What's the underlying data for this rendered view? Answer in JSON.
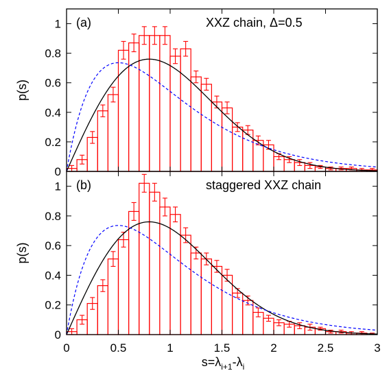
{
  "chart_data": [
    {
      "type": "bar",
      "panel_label": "(a)",
      "title": "XXZ chain, Δ=0.5",
      "ylabel": "p(s)",
      "xlabel": "",
      "xlim": [
        0,
        3
      ],
      "ylim": [
        0,
        1.1
      ],
      "yticks": [
        "0",
        "0.2",
        "0.4",
        "0.6",
        "0.8",
        "1"
      ],
      "xticks": [],
      "bin_width": 0.1,
      "x": [
        0.0,
        0.1,
        0.2,
        0.3,
        0.4,
        0.5,
        0.6,
        0.7,
        0.8,
        0.9,
        1.0,
        1.1,
        1.2,
        1.3,
        1.4,
        1.5,
        1.6,
        1.7,
        1.8,
        1.9,
        2.0,
        2.1,
        2.2,
        2.3,
        2.4,
        2.5,
        2.6,
        2.7,
        2.8,
        2.9
      ],
      "values": [
        0.02,
        0.08,
        0.23,
        0.41,
        0.52,
        0.82,
        0.87,
        0.92,
        0.92,
        0.92,
        0.78,
        0.83,
        0.64,
        0.59,
        0.47,
        0.43,
        0.3,
        0.28,
        0.21,
        0.18,
        0.1,
        0.08,
        0.06,
        0.04,
        0.03,
        0.02,
        0.02,
        0.02,
        0.01,
        0.01
      ],
      "errors": [
        0.02,
        0.03,
        0.04,
        0.04,
        0.05,
        0.06,
        0.06,
        0.06,
        0.06,
        0.06,
        0.05,
        0.05,
        0.04,
        0.04,
        0.04,
        0.04,
        0.03,
        0.03,
        0.03,
        0.03,
        0.02,
        0.02,
        0.02,
        0.02,
        0.01,
        0.01,
        0.01,
        0.01,
        0.01,
        0.01
      ],
      "curves": [
        {
          "style": "solid",
          "color": "#000000",
          "formula": "wigner-dyson-goe"
        },
        {
          "style": "dashed",
          "color": "#0000ff",
          "formula": "semi-poisson"
        }
      ],
      "bar_color": "#ff0000"
    },
    {
      "type": "bar",
      "panel_label": "(b)",
      "title": "staggered XXZ chain",
      "ylabel": "p(s)",
      "xlabel": "s=λ",
      "xlabel_sub1": "i+1",
      "xlabel_mid": "-λ",
      "xlabel_sub2": "i",
      "xlim": [
        0,
        3
      ],
      "ylim": [
        0,
        1.1
      ],
      "yticks": [
        "0",
        "0.2",
        "0.4",
        "0.6",
        "0.8",
        "1"
      ],
      "xticks": [
        "0",
        "0.5",
        "1",
        "1.5",
        "2",
        "2.5",
        "3"
      ],
      "bin_width": 0.1,
      "x": [
        0.0,
        0.1,
        0.2,
        0.3,
        0.4,
        0.5,
        0.6,
        0.7,
        0.8,
        0.9,
        1.0,
        1.1,
        1.2,
        1.3,
        1.4,
        1.5,
        1.6,
        1.7,
        1.8,
        1.9,
        2.0,
        2.1,
        2.2,
        2.3,
        2.4,
        2.5,
        2.6,
        2.7,
        2.8,
        2.9
      ],
      "values": [
        0.02,
        0.1,
        0.21,
        0.33,
        0.51,
        0.64,
        0.83,
        1.02,
        0.96,
        0.86,
        0.81,
        0.67,
        0.55,
        0.51,
        0.46,
        0.4,
        0.28,
        0.23,
        0.15,
        0.11,
        0.08,
        0.07,
        0.06,
        0.05,
        0.04,
        0.02,
        0.02,
        0.01,
        0.01,
        0.0
      ],
      "errors": [
        0.02,
        0.03,
        0.04,
        0.04,
        0.05,
        0.05,
        0.06,
        0.06,
        0.06,
        0.06,
        0.05,
        0.05,
        0.04,
        0.04,
        0.04,
        0.04,
        0.03,
        0.03,
        0.03,
        0.02,
        0.02,
        0.02,
        0.02,
        0.02,
        0.01,
        0.01,
        0.01,
        0.01,
        0.01,
        0.01
      ],
      "curves": [
        {
          "style": "solid",
          "color": "#000000",
          "formula": "wigner-dyson-goe"
        },
        {
          "style": "dashed",
          "color": "#0000ff",
          "formula": "semi-poisson"
        }
      ],
      "bar_color": "#ff0000"
    }
  ]
}
